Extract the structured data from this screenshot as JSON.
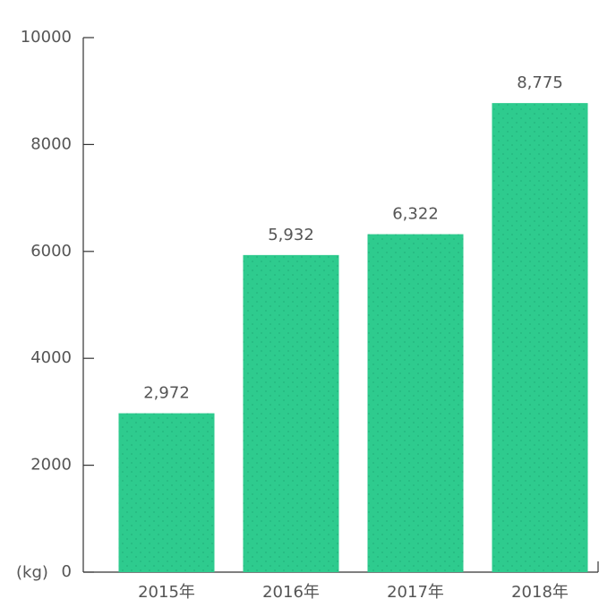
{
  "chart_data": {
    "type": "bar",
    "y_unit": "(kg)",
    "categories": [
      "2015年",
      "2016年",
      "2017年",
      "2018年"
    ],
    "values": [
      2972,
      5932,
      6322,
      8775
    ],
    "value_labels": [
      "2,972",
      "5,932",
      "6,322",
      "8,775"
    ],
    "color": "#2ecb8e",
    "ylim": [
      0,
      10000
    ],
    "yticks": [
      0,
      2000,
      4000,
      6000,
      8000,
      10000
    ]
  }
}
